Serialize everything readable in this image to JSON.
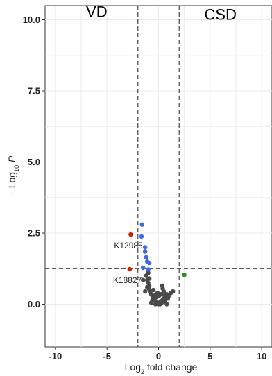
{
  "chart_data": {
    "type": "scatter",
    "title": "",
    "xlabel": {
      "base": "Log",
      "sub": "2",
      "rest": " fold change"
    },
    "ylabel": {
      "prefix": "− Log",
      "sub": "10",
      "var": " P"
    },
    "xlim": [
      -11,
      11
    ],
    "ylim": [
      -1.5,
      10.5
    ],
    "x_ticks": [
      -10,
      -5,
      0,
      5,
      10
    ],
    "y_ticks": [
      0.0,
      2.5,
      5.0,
      7.5,
      10.0
    ],
    "x_tick_labels": [
      "-10",
      "-5",
      "0",
      "5",
      "10"
    ],
    "y_tick_labels": [
      "0.0",
      "2.5",
      "5.0",
      "7.5",
      "10.0"
    ],
    "grid": true,
    "thresholds": {
      "fold_change": [
        -2,
        2
      ],
      "p": 1.25
    },
    "group_labels": [
      {
        "text": "VD",
        "x": -6,
        "y": 10.1
      },
      {
        "text": "CSD",
        "x": 6,
        "y": 10.0
      }
    ],
    "colors": {
      "ns": "#4a4a4a",
      "p_only": "#4169e1",
      "fc_and_p": "#cc2200",
      "fc_only": "#2e8b2e"
    },
    "series": [
      {
        "category": "ns",
        "points": [
          [
            -1.2,
            1.0
          ],
          [
            -1.1,
            0.85
          ],
          [
            -1.0,
            0.75
          ],
          [
            -0.9,
            0.65
          ],
          [
            -0.95,
            0.55
          ],
          [
            -0.8,
            0.45
          ],
          [
            -0.7,
            0.35
          ],
          [
            -0.6,
            0.3
          ],
          [
            -0.5,
            0.2
          ],
          [
            -0.4,
            0.15
          ],
          [
            -0.3,
            0.1
          ],
          [
            -0.2,
            0.05
          ],
          [
            -0.1,
            0.02
          ],
          [
            0.0,
            0.0
          ],
          [
            0.1,
            0.05
          ],
          [
            0.2,
            0.1
          ],
          [
            0.3,
            0.05
          ],
          [
            0.4,
            0.15
          ],
          [
            0.5,
            0.2
          ],
          [
            0.6,
            0.3
          ],
          [
            0.7,
            0.25
          ],
          [
            0.8,
            0.35
          ],
          [
            0.9,
            0.2
          ],
          [
            1.0,
            0.3
          ],
          [
            1.2,
            0.4
          ],
          [
            1.4,
            0.45
          ],
          [
            -1.3,
            0.45
          ],
          [
            -0.9,
            0.9
          ],
          [
            -1.0,
            1.1
          ],
          [
            -0.6,
            0.15
          ],
          [
            -0.3,
            0.0
          ],
          [
            0.15,
            0.0
          ],
          [
            0.35,
            0.65
          ],
          [
            0.4,
            0.55
          ],
          [
            -0.2,
            0.25
          ],
          [
            0.05,
            0.3
          ],
          [
            -0.5,
            0.5
          ],
          [
            0.6,
            0.1
          ],
          [
            0.8,
            0.0
          ],
          [
            -0.7,
            0.05
          ],
          [
            -0.1,
            0.4
          ],
          [
            0.25,
            0.35
          ],
          [
            -1.5,
            0.85
          ],
          [
            -1.1,
            0.6
          ],
          [
            0.5,
            0.45
          ],
          [
            -0.4,
            0.3
          ]
        ]
      },
      {
        "category": "p_only",
        "points": [
          [
            -1.6,
            2.8
          ],
          [
            -1.65,
            2.38
          ],
          [
            -1.3,
            2.0
          ],
          [
            -1.3,
            1.85
          ],
          [
            -1.2,
            1.65
          ],
          [
            -1.1,
            1.5
          ],
          [
            -0.9,
            1.45
          ],
          [
            -1.5,
            1.28
          ],
          [
            -1.0,
            1.22
          ]
        ]
      },
      {
        "category": "fc_and_p",
        "points": [
          [
            -2.7,
            2.45
          ],
          [
            -2.8,
            1.23
          ]
        ]
      },
      {
        "category": "fc_only",
        "points": [
          [
            2.5,
            1.03
          ]
        ]
      }
    ],
    "labels": [
      {
        "text": "K12985",
        "x": -2.7,
        "y": 2.45
      },
      {
        "text": "K18827",
        "x": -2.8,
        "y": 1.23
      }
    ]
  }
}
